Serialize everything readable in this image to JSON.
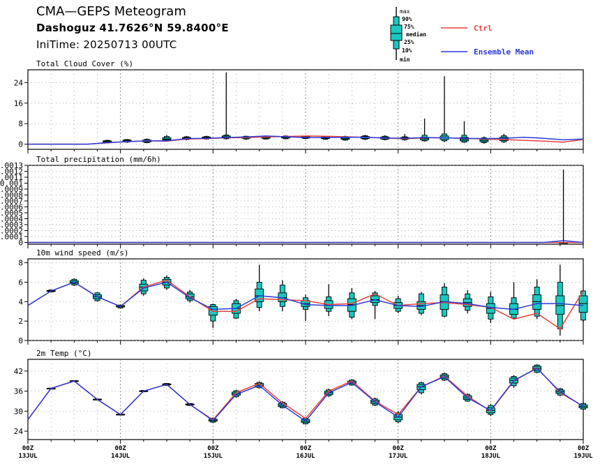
{
  "header": {
    "title": "CMA—GEPS Meteogram",
    "location": "Dashoguz 41.7626°N 59.8400°E",
    "init_time": "IniTime: 20250713 00UTC"
  },
  "legend": {
    "box_labels": [
      "max",
      "90%",
      "75%",
      "median",
      "25%",
      "10%",
      "min"
    ],
    "ctrl_label": "Ctrl",
    "mean_label": "Ensemble Mean",
    "colors": {
      "ctrl": "#e8413c",
      "mean": "#2b3bd6",
      "box": "#19c9c0"
    }
  },
  "chart_data": [
    {
      "type": "box+line",
      "title": "Total Cloud Cover (%)",
      "ylim": [
        -2,
        29
      ],
      "yticks": [
        0,
        8,
        16,
        24
      ],
      "ytick_labels": [
        "0",
        "8",
        "16",
        "24"
      ],
      "ctrl": [
        0,
        0,
        0,
        0,
        0.5,
        1,
        1.3,
        1.2,
        2,
        2.2,
        2.5,
        2.6,
        2.8,
        3,
        3.2,
        3.1,
        2.9,
        2.7,
        2.4,
        2.1,
        2.5,
        2.5,
        2.3,
        2,
        1.8,
        1.5,
        1.2,
        0.8,
        1.8
      ],
      "mean": [
        0,
        0,
        0,
        0,
        0.6,
        1,
        1.3,
        1.3,
        2.2,
        2.3,
        2.6,
        2.8,
        3.2,
        2.9,
        2.6,
        2.6,
        2.7,
        2.7,
        2.4,
        2.3,
        2.6,
        2.5,
        2.3,
        2.2,
        2.3,
        2.7,
        2.3,
        1.7,
        2
      ],
      "boxes": [
        {
          "i": 4,
          "min": 0.3,
          "p10": 0.5,
          "p25": 0.7,
          "median": 1,
          "p75": 1.3,
          "p90": 1.5,
          "max": 1.7
        },
        {
          "i": 5,
          "min": 0.5,
          "p10": 0.8,
          "p25": 1,
          "median": 1.3,
          "p75": 1.6,
          "p90": 1.8,
          "max": 2
        },
        {
          "i": 6,
          "min": 0.4,
          "p10": 0.6,
          "p25": 0.9,
          "median": 1.2,
          "p75": 1.6,
          "p90": 1.9,
          "max": 2.2
        },
        {
          "i": 7,
          "min": 1,
          "p10": 1.4,
          "p25": 1.7,
          "median": 2,
          "p75": 2.5,
          "p90": 3,
          "max": 3.6
        },
        {
          "i": 8,
          "min": 1.5,
          "p10": 1.8,
          "p25": 2,
          "median": 2.3,
          "p75": 2.6,
          "p90": 2.9,
          "max": 3.2
        },
        {
          "i": 9,
          "min": 1.8,
          "p10": 2,
          "p25": 2.2,
          "median": 2.5,
          "p75": 2.8,
          "p90": 3,
          "max": 3.3
        },
        {
          "i": 10,
          "min": 1.8,
          "p10": 2.1,
          "p25": 2.4,
          "median": 2.8,
          "p75": 3.2,
          "p90": 3.6,
          "max": 28
        },
        {
          "i": 11,
          "min": 1.7,
          "p10": 2,
          "p25": 2.3,
          "median": 2.6,
          "p75": 2.9,
          "p90": 3.1,
          "max": 3.3
        },
        {
          "i": 12,
          "min": 1.8,
          "p10": 2,
          "p25": 2.3,
          "median": 2.6,
          "p75": 2.9,
          "p90": 3.1,
          "max": 3.4
        },
        {
          "i": 13,
          "min": 1.9,
          "p10": 2.1,
          "p25": 2.4,
          "median": 2.7,
          "p75": 3,
          "p90": 3.2,
          "max": 3.4
        },
        {
          "i": 14,
          "min": 2,
          "p10": 2.2,
          "p25": 2.4,
          "median": 2.7,
          "p75": 2.9,
          "p90": 3.1,
          "max": 3.3
        },
        {
          "i": 15,
          "min": 1.7,
          "p10": 1.9,
          "p25": 2.2,
          "median": 2.5,
          "p75": 2.8,
          "p90": 3,
          "max": 3.2
        },
        {
          "i": 16,
          "min": 1.3,
          "p10": 1.6,
          "p25": 1.9,
          "median": 2.3,
          "p75": 2.7,
          "p90": 3,
          "max": 3.3
        },
        {
          "i": 17,
          "min": 1.6,
          "p10": 1.9,
          "p25": 2.2,
          "median": 2.6,
          "p75": 3,
          "p90": 3.3,
          "max": 3.6
        },
        {
          "i": 18,
          "min": 1.5,
          "p10": 1.8,
          "p25": 2,
          "median": 2.4,
          "p75": 2.8,
          "p90": 3.1,
          "max": 3.5
        },
        {
          "i": 19,
          "min": 1.4,
          "p10": 1.7,
          "p25": 2,
          "median": 2.3,
          "p75": 2.6,
          "p90": 2.9,
          "max": 4
        },
        {
          "i": 20,
          "min": 1,
          "p10": 1.3,
          "p25": 1.7,
          "median": 2.2,
          "p75": 2.7,
          "p90": 3.5,
          "max": 10
        },
        {
          "i": 21,
          "min": 0.8,
          "p10": 1.3,
          "p25": 1.8,
          "median": 2.5,
          "p75": 3.2,
          "p90": 4,
          "max": 26.5
        },
        {
          "i": 22,
          "min": 0.5,
          "p10": 0.8,
          "p25": 1.3,
          "median": 1.8,
          "p75": 2.6,
          "p90": 3.5,
          "max": 9
        },
        {
          "i": 23,
          "min": 0.2,
          "p10": 0.6,
          "p25": 1,
          "median": 1.5,
          "p75": 2,
          "p90": 2.5,
          "max": 3
        },
        {
          "i": 24,
          "min": 0.5,
          "p10": 0.9,
          "p25": 1.4,
          "median": 2,
          "p75": 2.7,
          "p90": 3.3,
          "max": 4
        }
      ]
    },
    {
      "type": "box+line",
      "title": "Total precipitation (mm/6h)",
      "ylim": [
        -3e-05,
        0.0013
      ],
      "yticks": [
        0,
        0.0001,
        0.0002,
        0.0003,
        0.0004,
        0.0005,
        0.0006,
        0.0007,
        0.0008,
        0.0009,
        0.001,
        0.0011,
        0.0012,
        0.0013
      ],
      "ytick_labels": [
        "0",
        "0.0001",
        "0.0002",
        "0.0003",
        "0.0004",
        "0.0005",
        "0.0006",
        "0.0007",
        "0.0008",
        "0.0009",
        "0.001",
        "0.0011",
        "0.0012",
        "0.0013"
      ],
      "ctrl": [
        0,
        0,
        0,
        0,
        0,
        0,
        0,
        0,
        0,
        0,
        0,
        0,
        0,
        0,
        0,
        0,
        0,
        0,
        0,
        0,
        0,
        0,
        0,
        0,
        0,
        0,
        0,
        0,
        0
      ],
      "mean": [
        0,
        0,
        0,
        0,
        0,
        0,
        0,
        0,
        0,
        0,
        0,
        0,
        0,
        0,
        0,
        0,
        0,
        0,
        0,
        0,
        0,
        0,
        0,
        0,
        0,
        0,
        0,
        3e-05,
        0
      ],
      "boxes": [
        {
          "i": 27,
          "min": 0,
          "p10": 0,
          "p25": 0,
          "median": 0,
          "p75": 0,
          "p90": 0,
          "max": 0.00123
        }
      ]
    },
    {
      "type": "box+line",
      "title": "10m wind speed (m/s)",
      "ylim": [
        0,
        8.4
      ],
      "yticks": [
        0,
        2,
        4,
        6,
        8
      ],
      "ytick_labels": [
        "0",
        "2",
        "4",
        "6",
        "8"
      ],
      "ctrl": [
        3.6,
        5.1,
        6,
        4.5,
        3.5,
        5.5,
        6.2,
        4.5,
        3,
        3,
        4.3,
        4.2,
        4.1,
        3.7,
        3.8,
        4.8,
        3.6,
        3.8,
        3.9,
        3.7,
        3.4,
        2.2,
        2.8,
        1.2,
        5.1
      ],
      "mean": [
        3.6,
        5.1,
        6,
        4.5,
        3.5,
        5.4,
        6,
        4.4,
        3.2,
        3.3,
        4.6,
        4.4,
        3.7,
        3.6,
        3.6,
        4.2,
        3.6,
        3.5,
        4,
        3.8,
        3.4,
        3.2,
        3.8,
        3.8,
        3.6
      ],
      "boxes": [
        {
          "i": 1,
          "min": 4.95,
          "p10": 5,
          "p25": 5.05,
          "median": 5.1,
          "p75": 5.15,
          "p90": 5.2,
          "max": 5.25
        },
        {
          "i": 2,
          "min": 5.6,
          "p10": 5.7,
          "p25": 5.85,
          "median": 6,
          "p75": 6.15,
          "p90": 6.3,
          "max": 6.4
        },
        {
          "i": 3,
          "min": 4,
          "p10": 4.1,
          "p25": 4.3,
          "median": 4.5,
          "p75": 4.7,
          "p90": 4.9,
          "max": 5
        },
        {
          "i": 4,
          "min": 3.3,
          "p10": 3.35,
          "p25": 3.45,
          "median": 3.5,
          "p75": 3.6,
          "p90": 3.65,
          "max": 3.7
        },
        {
          "i": 5,
          "min": 4.6,
          "p10": 4.8,
          "p25": 5.1,
          "median": 5.5,
          "p75": 5.8,
          "p90": 6.2,
          "max": 6.4
        },
        {
          "i": 6,
          "min": 5.2,
          "p10": 5.4,
          "p25": 5.7,
          "median": 6,
          "p75": 6.3,
          "p90": 6.5,
          "max": 6.7
        },
        {
          "i": 7,
          "min": 3.9,
          "p10": 4.1,
          "p25": 4.3,
          "median": 4.5,
          "p75": 4.8,
          "p90": 5,
          "max": 5.2
        },
        {
          "i": 8,
          "min": 1.3,
          "p10": 2,
          "p25": 2.6,
          "median": 3.2,
          "p75": 3.5,
          "p90": 3.7,
          "max": 3.8
        },
        {
          "i": 9,
          "min": 2.2,
          "p10": 2.3,
          "p25": 2.8,
          "median": 3.3,
          "p75": 3.8,
          "p90": 4.1,
          "max": 4.3
        },
        {
          "i": 10,
          "min": 3,
          "p10": 3.4,
          "p25": 4,
          "median": 4.6,
          "p75": 5.3,
          "p90": 6,
          "max": 7.8
        },
        {
          "i": 11,
          "min": 3,
          "p10": 3.5,
          "p25": 4,
          "median": 4.4,
          "p75": 4.9,
          "p90": 5.7,
          "max": 6.2
        },
        {
          "i": 12,
          "min": 2,
          "p10": 3.2,
          "p25": 3.5,
          "median": 3.8,
          "p75": 4.1,
          "p90": 4.4,
          "max": 4.7
        },
        {
          "i": 13,
          "min": 2.5,
          "p10": 3,
          "p25": 3.3,
          "median": 3.7,
          "p75": 4.1,
          "p90": 4.5,
          "max": 5.8
        },
        {
          "i": 14,
          "min": 2.2,
          "p10": 2.4,
          "p25": 3,
          "median": 3.7,
          "p75": 4.3,
          "p90": 4.9,
          "max": 5.4
        },
        {
          "i": 15,
          "min": 2.2,
          "p10": 3.6,
          "p25": 3.9,
          "median": 4.2,
          "p75": 4.6,
          "p90": 4.9,
          "max": 5.1
        },
        {
          "i": 16,
          "min": 2.8,
          "p10": 3,
          "p25": 3.3,
          "median": 3.6,
          "p75": 3.9,
          "p90": 4.3,
          "max": 4.6
        },
        {
          "i": 17,
          "min": 2.6,
          "p10": 2.8,
          "p25": 3.2,
          "median": 3.6,
          "p75": 4,
          "p90": 4.8,
          "max": 5
        },
        {
          "i": 18,
          "min": 2.4,
          "p10": 2.5,
          "p25": 3.2,
          "median": 4,
          "p75": 4.7,
          "p90": 5.5,
          "max": 5.9
        },
        {
          "i": 19,
          "min": 2.8,
          "p10": 3.1,
          "p25": 3.5,
          "median": 3.9,
          "p75": 4.3,
          "p90": 4.8,
          "max": 5.2
        },
        {
          "i": 20,
          "min": 1.8,
          "p10": 2.2,
          "p25": 2.8,
          "median": 3.3,
          "p75": 3.8,
          "p90": 4.5,
          "max": 5
        },
        {
          "i": 21,
          "min": 2.2,
          "p10": 2.3,
          "p25": 2.7,
          "median": 3.2,
          "p75": 3.8,
          "p90": 4.4,
          "max": 6
        },
        {
          "i": 22,
          "min": 2.2,
          "p10": 2.5,
          "p25": 3.2,
          "median": 4,
          "p75": 4.7,
          "p90": 5.5,
          "max": 6.3
        },
        {
          "i": 23,
          "min": 0.5,
          "p10": 1.2,
          "p25": 2.7,
          "median": 3.6,
          "p75": 4.6,
          "p90": 6,
          "max": 7.8
        },
        {
          "i": 24,
          "min": 1.9,
          "p10": 2.1,
          "p25": 2.9,
          "median": 3.8,
          "p75": 4.6,
          "p90": 5.1,
          "max": 5.2
        }
      ]
    },
    {
      "type": "box+line",
      "title": "2m Temp (°C)",
      "ylim": [
        21.5,
        45.5
      ],
      "yticks": [
        24,
        30,
        36,
        42
      ],
      "ytick_labels": [
        "24",
        "30",
        "36",
        "42"
      ],
      "ctrl": [
        27.5,
        36.8,
        39,
        33.5,
        29,
        36,
        38,
        32,
        27.4,
        35.5,
        38.3,
        32.5,
        27.8,
        36,
        39,
        33,
        29,
        37.3,
        40.5,
        34.5,
        30,
        39,
        43,
        35.5,
        31.5
      ],
      "mean": [
        27.5,
        36.8,
        39,
        33.5,
        29,
        36,
        38,
        32,
        27.2,
        35,
        37.7,
        31.8,
        27,
        35.5,
        38.6,
        32.8,
        28.2,
        37.3,
        40.3,
        34,
        30.2,
        39.2,
        42.8,
        35.8,
        31.4
      ],
      "boxes": [
        {
          "i": 1,
          "min": 36.6,
          "p10": 36.7,
          "p25": 36.75,
          "median": 36.8,
          "p75": 36.85,
          "p90": 36.9,
          "max": 37
        },
        {
          "i": 2,
          "min": 38.8,
          "p10": 38.85,
          "p25": 38.9,
          "median": 39,
          "p75": 39.1,
          "p90": 39.15,
          "max": 39.2
        },
        {
          "i": 3,
          "min": 33.3,
          "p10": 33.35,
          "p25": 33.4,
          "median": 33.5,
          "p75": 33.6,
          "p90": 33.65,
          "max": 33.7
        },
        {
          "i": 4,
          "min": 28.8,
          "p10": 28.85,
          "p25": 28.9,
          "median": 29,
          "p75": 29.1,
          "p90": 29.15,
          "max": 29.2
        },
        {
          "i": 5,
          "min": 35.7,
          "p10": 35.8,
          "p25": 35.9,
          "median": 36,
          "p75": 36.1,
          "p90": 36.2,
          "max": 36.3
        },
        {
          "i": 6,
          "min": 37.6,
          "p10": 37.7,
          "p25": 37.85,
          "median": 38,
          "p75": 38.15,
          "p90": 38.3,
          "max": 38.4
        },
        {
          "i": 7,
          "min": 31.6,
          "p10": 31.7,
          "p25": 31.85,
          "median": 32,
          "p75": 32.15,
          "p90": 32.3,
          "max": 32.4
        },
        {
          "i": 8,
          "min": 26.5,
          "p10": 26.7,
          "p25": 27,
          "median": 27.3,
          "p75": 27.6,
          "p90": 27.9,
          "max": 28.1
        },
        {
          "i": 9,
          "min": 34,
          "p10": 34.3,
          "p25": 34.8,
          "median": 35.2,
          "p75": 35.7,
          "p90": 36.1,
          "max": 36.4
        },
        {
          "i": 10,
          "min": 36.8,
          "p10": 37,
          "p25": 37.4,
          "median": 37.8,
          "p75": 38.3,
          "p90": 38.6,
          "max": 38.9
        },
        {
          "i": 11,
          "min": 30.8,
          "p10": 31,
          "p25": 31.4,
          "median": 31.8,
          "p75": 32.3,
          "p90": 32.7,
          "max": 33
        },
        {
          "i": 12,
          "min": 26,
          "p10": 26.2,
          "p25": 26.6,
          "median": 27,
          "p75": 27.5,
          "p90": 27.9,
          "max": 28.2
        },
        {
          "i": 13,
          "min": 34.3,
          "p10": 34.6,
          "p25": 35,
          "median": 35.5,
          "p75": 36,
          "p90": 36.4,
          "max": 36.7
        },
        {
          "i": 14,
          "min": 37.6,
          "p10": 37.8,
          "p25": 38.2,
          "median": 38.6,
          "p75": 39,
          "p90": 39.3,
          "max": 39.6
        },
        {
          "i": 15,
          "min": 31.5,
          "p10": 31.8,
          "p25": 32.3,
          "median": 32.8,
          "p75": 33.3,
          "p90": 33.7,
          "max": 34
        },
        {
          "i": 16,
          "min": 26.4,
          "p10": 26.8,
          "p25": 27.4,
          "median": 28.2,
          "p75": 29,
          "p90": 29.5,
          "max": 30
        },
        {
          "i": 17,
          "min": 35,
          "p10": 35.5,
          "p25": 36.4,
          "median": 37.3,
          "p75": 38,
          "p90": 38.5,
          "max": 38.8
        },
        {
          "i": 18,
          "min": 39,
          "p10": 39.3,
          "p25": 39.8,
          "median": 40.3,
          "p75": 40.8,
          "p90": 41.2,
          "max": 41.5
        },
        {
          "i": 19,
          "min": 32.8,
          "p10": 33,
          "p25": 33.5,
          "median": 34,
          "p75": 34.6,
          "p90": 35,
          "max": 35.3
        },
        {
          "i": 20,
          "min": 28.6,
          "p10": 29,
          "p25": 29.5,
          "median": 30.2,
          "p75": 31,
          "p90": 31.7,
          "max": 32.2
        },
        {
          "i": 21,
          "min": 37,
          "p10": 37.6,
          "p25": 38.4,
          "median": 39.2,
          "p75": 39.9,
          "p90": 40.4,
          "max": 40.8
        },
        {
          "i": 22,
          "min": 41.3,
          "p10": 41.6,
          "p25": 42.2,
          "median": 42.8,
          "p75": 43.4,
          "p90": 43.8,
          "max": 44
        },
        {
          "i": 23,
          "min": 34.5,
          "p10": 34.8,
          "p25": 35.3,
          "median": 35.8,
          "p75": 36.3,
          "p90": 36.7,
          "max": 37
        },
        {
          "i": 24,
          "min": 30.4,
          "p10": 30.6,
          "p25": 31,
          "median": 31.4,
          "p75": 31.9,
          "p90": 32.3,
          "max": 32.6
        }
      ]
    }
  ],
  "x_axis": {
    "start_date": "2025-07-13",
    "days": 6,
    "hour_labels": [
      "00Z",
      "00Z",
      "00Z",
      "00Z",
      "00Z",
      "00Z",
      "00Z"
    ],
    "date_labels": [
      "13JUL",
      "14JUL",
      "15JUL",
      "16JUL",
      "17JUL",
      "18JUL",
      "19JUL"
    ]
  }
}
